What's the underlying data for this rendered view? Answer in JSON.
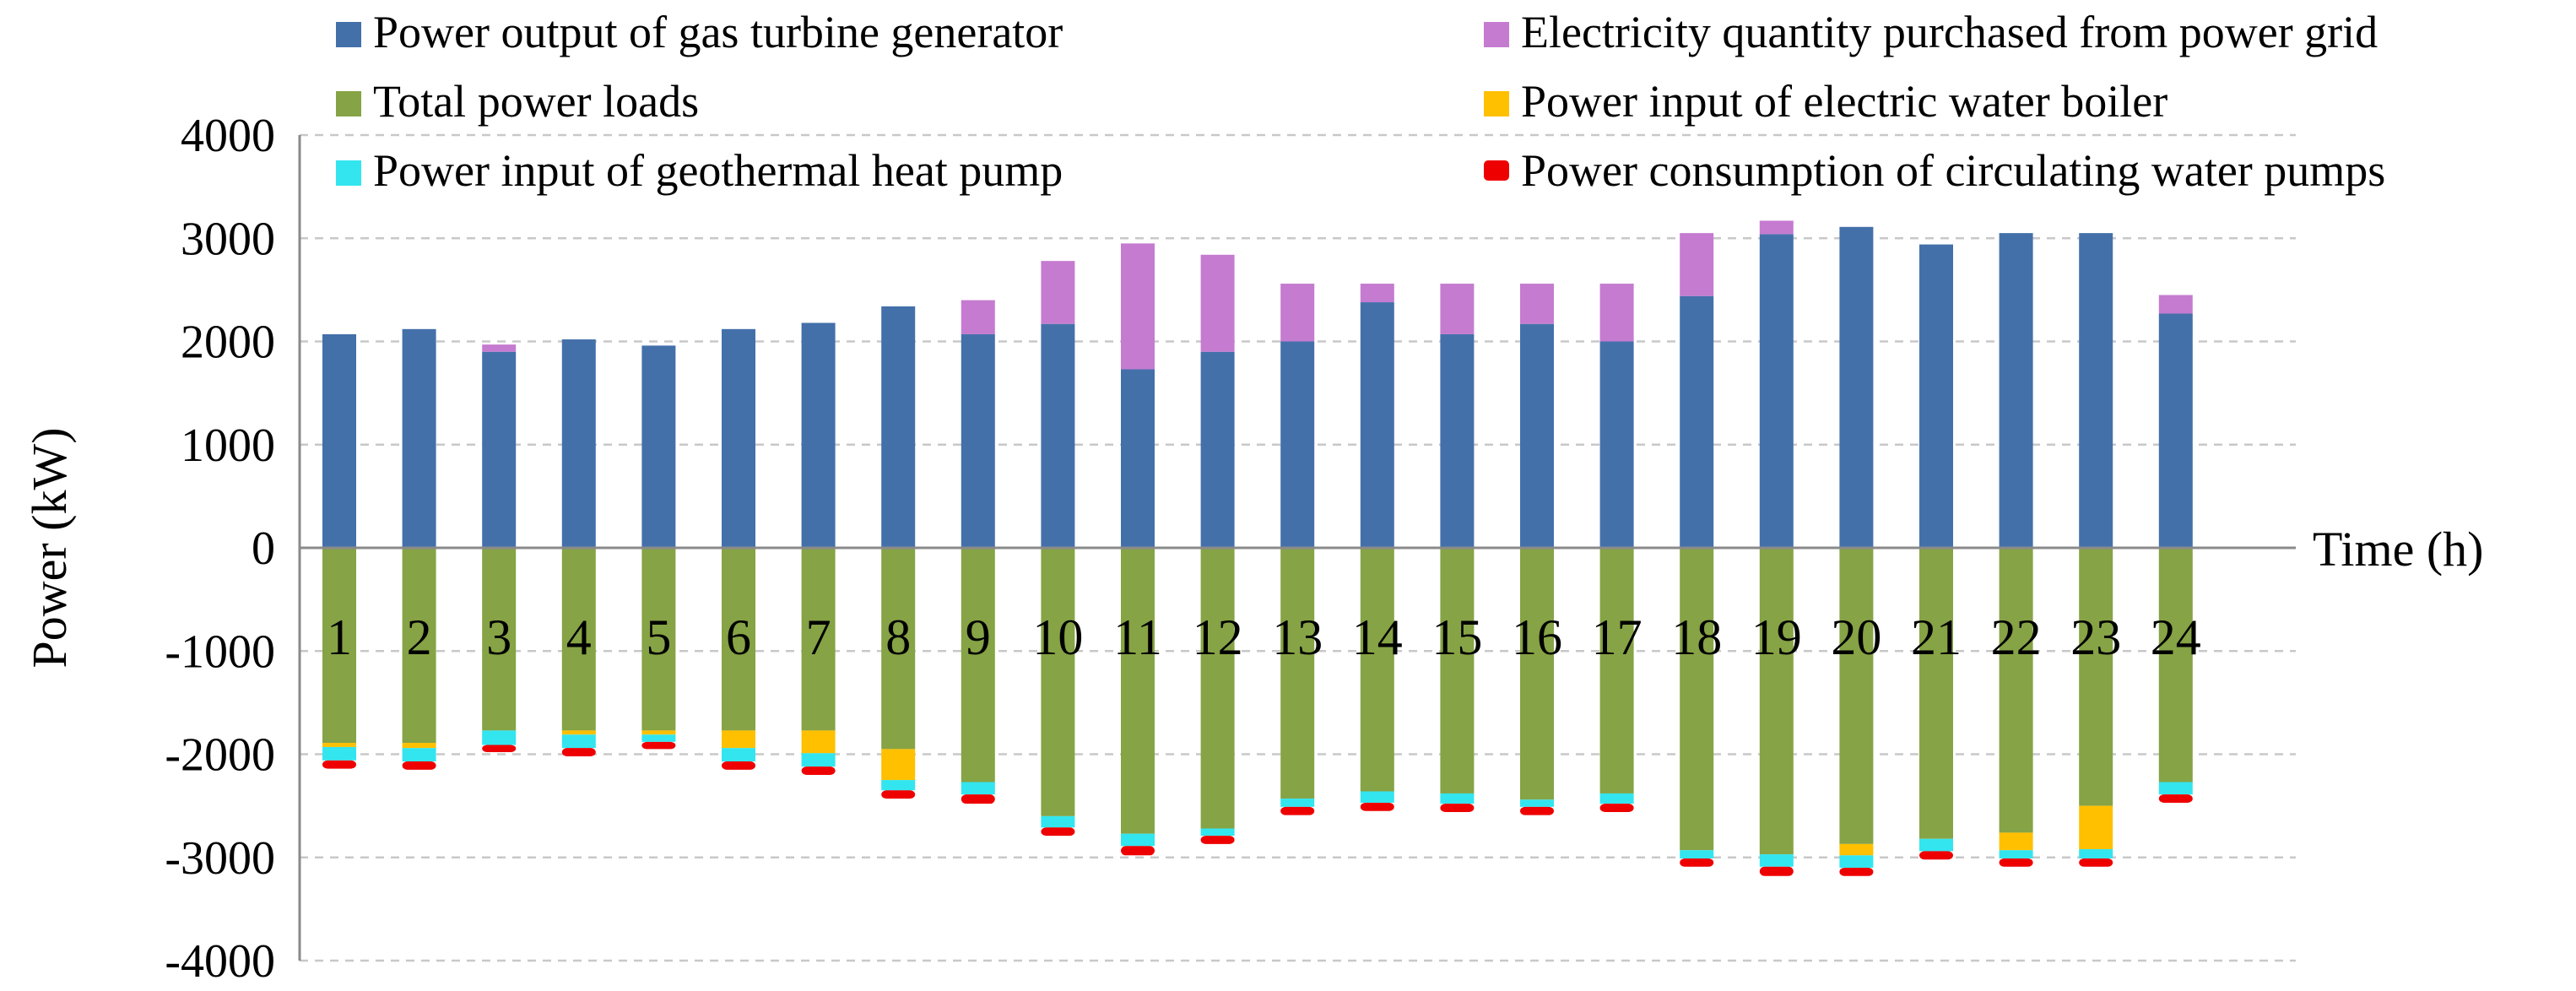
{
  "chart_data": {
    "type": "bar",
    "stacked": true,
    "title": "",
    "xlabel": "Time (h)",
    "ylabel": "Power (kW)",
    "ylim": [
      -4000,
      4000
    ],
    "yticks": [
      "4000",
      "3000",
      "2000",
      "1000",
      "0",
      "-1000",
      "-2000",
      "-3000",
      "-4000"
    ],
    "grid": true,
    "categories": [
      "1",
      "2",
      "3",
      "4",
      "5",
      "6",
      "7",
      "8",
      "9",
      "10",
      "11",
      "12",
      "13",
      "14",
      "15",
      "16",
      "17",
      "18",
      "19",
      "20",
      "21",
      "22",
      "23",
      "24"
    ],
    "series": [
      {
        "name": "Power output of gas turbine generator",
        "color": "#4470aa",
        "side": "positive",
        "values": [
          2070,
          2120,
          1900,
          2020,
          1960,
          2120,
          2180,
          2340,
          2070,
          2170,
          1730,
          1900,
          2000,
          2380,
          2070,
          2170,
          2000,
          2440,
          3040,
          3110,
          2940,
          3050,
          3050,
          2270
        ]
      },
      {
        "name": "Electricity quantity purchased from power grid",
        "color": "#c57bd0",
        "side": "positive",
        "values": [
          0,
          0,
          70,
          0,
          0,
          0,
          0,
          0,
          330,
          610,
          1220,
          940,
          560,
          180,
          490,
          390,
          560,
          610,
          130,
          0,
          0,
          0,
          0,
          180
        ]
      },
      {
        "name": "Total power loads",
        "color": "#86a345",
        "side": "negative",
        "values": [
          1890,
          1890,
          1770,
          1770,
          1770,
          1770,
          1770,
          1950,
          2270,
          2600,
          2770,
          2720,
          2430,
          2360,
          2380,
          2440,
          2380,
          2930,
          2970,
          2870,
          2820,
          2760,
          2500,
          2270
        ]
      },
      {
        "name": "Power input of electric water boiler",
        "color": "#ffc000",
        "side": "negative",
        "values": [
          40,
          50,
          0,
          40,
          40,
          170,
          220,
          300,
          0,
          0,
          0,
          0,
          0,
          0,
          0,
          0,
          0,
          0,
          0,
          110,
          0,
          170,
          420,
          0
        ]
      },
      {
        "name": "Power input of geothermal heat pump",
        "color": "#33e5ee",
        "side": "negative",
        "values": [
          130,
          130,
          140,
          130,
          70,
          130,
          130,
          100,
          120,
          110,
          120,
          70,
          80,
          110,
          100,
          70,
          100,
          80,
          120,
          120,
          120,
          80,
          90,
          120
        ]
      },
      {
        "name": "Power consumption of circulating water pumps",
        "color": "#ee0000",
        "side": "negative",
        "values": [
          80,
          80,
          70,
          80,
          70,
          80,
          80,
          80,
          90,
          80,
          90,
          80,
          80,
          80,
          80,
          80,
          80,
          80,
          90,
          80,
          80,
          80,
          80,
          80
        ]
      }
    ],
    "legend": {
      "placement": "top",
      "columns": 2
    }
  }
}
